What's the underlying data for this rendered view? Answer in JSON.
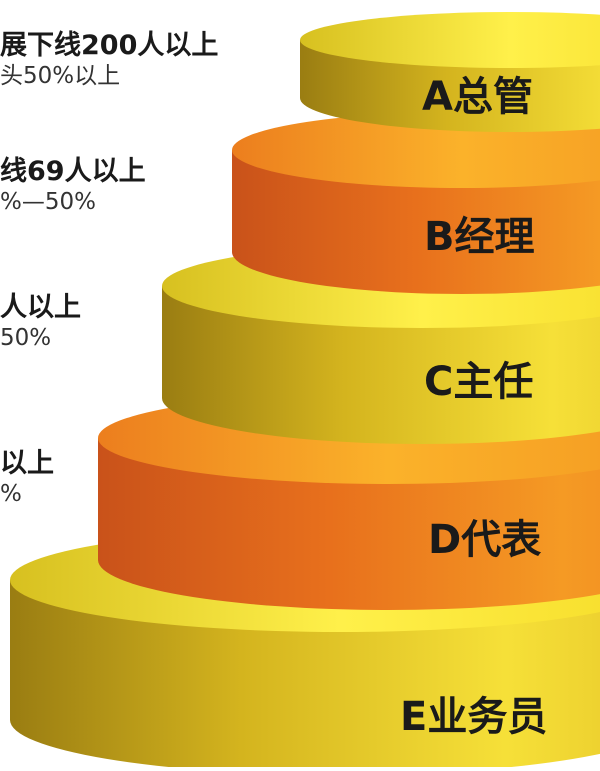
{
  "tiers": [
    {
      "label": "A总管",
      "color": "yellow"
    },
    {
      "label": "B经理",
      "color": "orange"
    },
    {
      "label": "C主任",
      "color": "yellow"
    },
    {
      "label": "D代表",
      "color": "orange"
    },
    {
      "label": "E业务员",
      "color": "yellow"
    }
  ],
  "side_notes": [
    {
      "main": "展下线200人以上",
      "sub": "头50%以上"
    },
    {
      "main": "线69人以上",
      "sub": "%—50%"
    },
    {
      "main": "人以上",
      "sub": "50%"
    },
    {
      "main": "以上",
      "sub": "%"
    }
  ],
  "colors": {
    "yellow_light": "#f8e83a",
    "yellow_dark": "#c9a51a",
    "orange_light": "#f6a624",
    "orange_dark": "#e2661a"
  }
}
